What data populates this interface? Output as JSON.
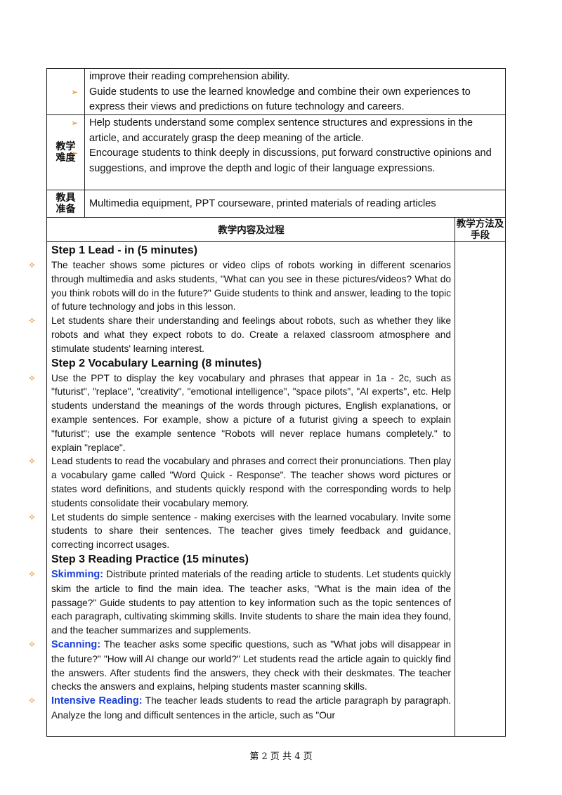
{
  "rows": [
    {
      "label": null,
      "items": [
        "improve their reading comprehension ability.",
        "Guide students to use the learned knowledge and combine their own experiences to express their views and predictions on future technology and careers."
      ]
    },
    {
      "label": "教学难度",
      "items": [
        "Help students understand some complex sentence structures and expressions in the article, and accurately grasp the deep meaning of the article.",
        "Encourage students to think deeply in discussions, put forward constructive opinions and suggestions, and improve the depth and logic of their language expressions."
      ]
    },
    {
      "label": "教具准备",
      "items": [
        "Multimedia equipment, PPT courseware, printed materials of reading articles"
      ]
    }
  ],
  "section_header": {
    "content": "教学内容及过程",
    "method": "教学方法及手段"
  },
  "steps": [
    {
      "title": "Step 1 Lead - in (5 minutes)",
      "items": [
        {
          "text": "The teacher shows some pictures or video clips of robots working in different scenarios through multimedia and asks students, \"What can you see in these pictures/videos? What do you think robots will do in the future?\" Guide students to think and answer, leading to the topic of future technology and jobs in this lesson."
        },
        {
          "text": "Let students share their understanding and feelings about robots, such as whether they like robots and what they expect robots to do. Create a relaxed classroom atmosphere and stimulate students' learning interest."
        }
      ]
    },
    {
      "title": "Step 2 Vocabulary Learning (8 minutes)",
      "items": [
        {
          "text": "Use the PPT to display the key vocabulary and phrases that appear in 1a - 2c, such as \"futurist\", \"replace\", \"creativity\", \"emotional intelligence\", \"space pilots\", \"AI experts\", etc. Help students understand the meanings of the words through pictures, English explanations, or example sentences. For example, show a picture of a futurist giving a speech to explain \"futurist\"; use the example sentence \"Robots will never replace humans completely.\" to explain \"replace\"."
        },
        {
          "text": "Lead students to read the vocabulary and phrases and correct their pronunciations. Then play a vocabulary game called \"Word Quick - Response\". The teacher shows word pictures or states word definitions, and students quickly respond with the corresponding words to help students consolidate their vocabulary memory."
        },
        {
          "text": "Let students do simple sentence - making exercises with the learned vocabulary. Invite some students to share their sentences. The teacher gives timely feedback and guidance, correcting incorrect usages."
        }
      ]
    },
    {
      "title": "Step 3 Reading Practice (15 minutes)",
      "items": [
        {
          "lead": "Skimming:",
          "text": "Distribute printed materials of the reading article to students. Let students quickly skim the article to find the main idea. The teacher asks, \"What is the main idea of the passage?\" Guide students to pay attention to key information such as the topic sentences of each paragraph, cultivating skimming skills. Invite students to share the main idea they found, and the teacher summarizes and supplements."
        },
        {
          "lead": "Scanning:",
          "text": "The teacher asks some specific questions, such as \"What jobs will disappear in the future?\" \"How will AI change our world?\" Let students read the article again to quickly find the answers. After students find the answers, they check with their deskmates. The teacher checks the answers and explains, helping students master scanning skills."
        },
        {
          "lead": "Intensive Reading:",
          "text": "The teacher leads students to read the article paragraph by paragraph. Analyze the long and difficult sentences in the article, such as \"Our"
        }
      ]
    }
  ],
  "footer": "第 2 页 共 4 页"
}
